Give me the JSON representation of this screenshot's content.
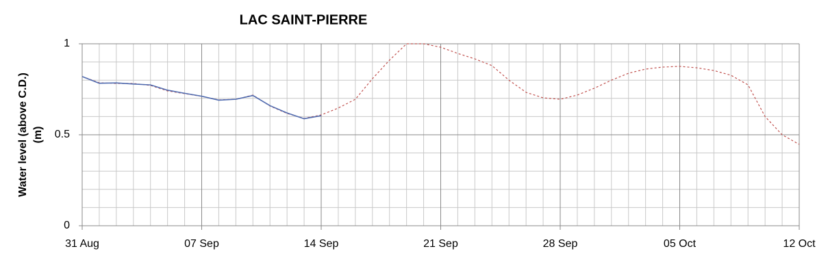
{
  "chart_data": {
    "type": "line",
    "title": "LAC SAINT-PIERRE",
    "ylabel": [
      "Water level (above C.D.)",
      "(m)"
    ],
    "categories": [
      "31 Aug",
      null,
      null,
      null,
      null,
      null,
      null,
      "07 Sep",
      null,
      null,
      null,
      null,
      null,
      null,
      "14 Sep",
      null,
      null,
      null,
      null,
      null,
      null,
      "21 Sep",
      null,
      null,
      null,
      null,
      null,
      null,
      "28 Sep",
      null,
      null,
      null,
      null,
      null,
      null,
      "05 Oct",
      null,
      null,
      null,
      null,
      null,
      null,
      "12 Oct"
    ],
    "series": [
      {
        "color": "#c0504d",
        "dashed": true,
        "values": [
          0.82,
          0.786,
          0.782,
          0.782,
          0.771,
          0.741,
          0.726,
          0.711,
          0.692,
          0.695,
          0.718,
          0.658,
          0.617,
          0.59,
          0.609,
          0.647,
          0.695,
          0.808,
          0.91,
          1.0,
          1.0,
          0.981,
          0.947,
          0.917,
          0.88,
          0.8,
          0.733,
          0.703,
          0.695,
          0.718,
          0.756,
          0.8,
          0.838,
          0.861,
          0.872,
          0.876,
          0.868,
          0.853,
          0.827,
          0.774,
          0.6,
          0.5,
          0.447
        ]
      },
      {
        "color": "#4f6bb0",
        "dashed": false,
        "values": [
          0.82,
          0.783,
          0.785,
          0.779,
          0.774,
          0.745,
          0.728,
          0.712,
          0.69,
          0.695,
          0.716,
          0.66,
          0.62,
          0.588,
          0.605,
          null,
          null,
          null,
          null,
          null,
          null,
          null,
          null,
          null,
          null,
          null,
          null,
          null,
          null,
          null,
          null,
          null,
          null,
          null,
          null,
          null,
          null,
          null,
          null,
          null,
          null,
          null,
          null
        ]
      }
    ],
    "ylim": [
      0,
      1
    ],
    "yticks": [
      0,
      0.5,
      1
    ],
    "yminorticks": [
      0.1,
      0.2,
      0.3,
      0.4,
      0.6,
      0.7,
      0.8,
      0.9
    ],
    "grid": true
  }
}
